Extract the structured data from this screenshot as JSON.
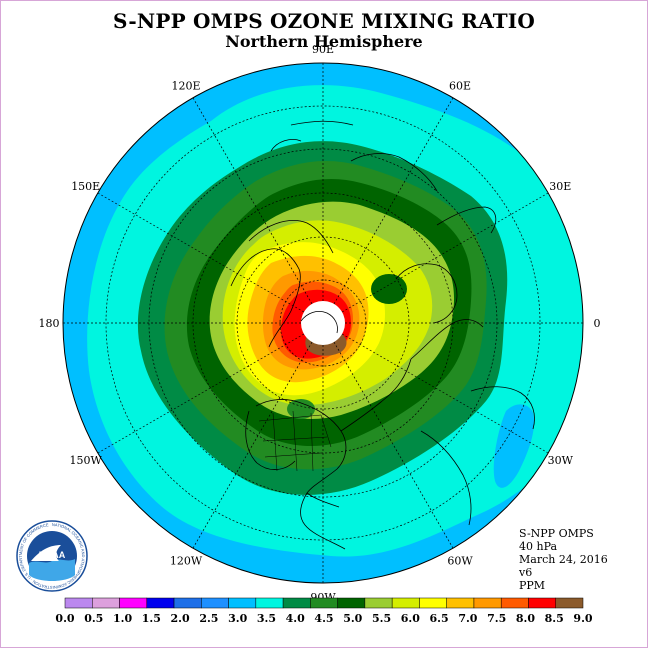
{
  "header": {
    "title": "S-NPP OMPS OZONE MIXING RATIO",
    "subtitle": "Northern Hemisphere"
  },
  "map": {
    "projection": "north polar stereographic",
    "longitude_labels": [
      "90E",
      "60E",
      "30E",
      "0",
      "30W",
      "60W",
      "90W",
      "120W",
      "150W",
      "180",
      "150E",
      "120E"
    ],
    "land_outline_color": "#000000",
    "polar_night_fill": "#ffffff"
  },
  "info": {
    "instrument": "S-NPP OMPS",
    "level": "40 hPa",
    "date": "March 24, 2016",
    "version": "v6",
    "units": "PPM"
  },
  "colorbar": {
    "ticks": [
      "0.0",
      "0.5",
      "1.0",
      "1.5",
      "2.0",
      "2.5",
      "3.0",
      "3.5",
      "4.0",
      "4.5",
      "5.0",
      "5.5",
      "6.0",
      "6.5",
      "7.0",
      "7.5",
      "8.0",
      "8.5",
      "9.0"
    ],
    "colors": [
      "#bb88ee",
      "#dda0dd",
      "#ff00ff",
      "#0000ee",
      "#1e6fe8",
      "#1e90ff",
      "#00bfff",
      "#00f5e0",
      "#008b45",
      "#228b22",
      "#006400",
      "#9acd32",
      "#d4ee00",
      "#ffff00",
      "#ffc000",
      "#ff9900",
      "#ff5a00",
      "#ff0000",
      "#8b5a2b"
    ]
  },
  "logo": {
    "text": "NOAA",
    "ring_text": "NATIONAL OCEANIC AND ATMOSPHERIC ADMINISTRATION · U.S. DEPARTMENT OF COMMERCE"
  }
}
